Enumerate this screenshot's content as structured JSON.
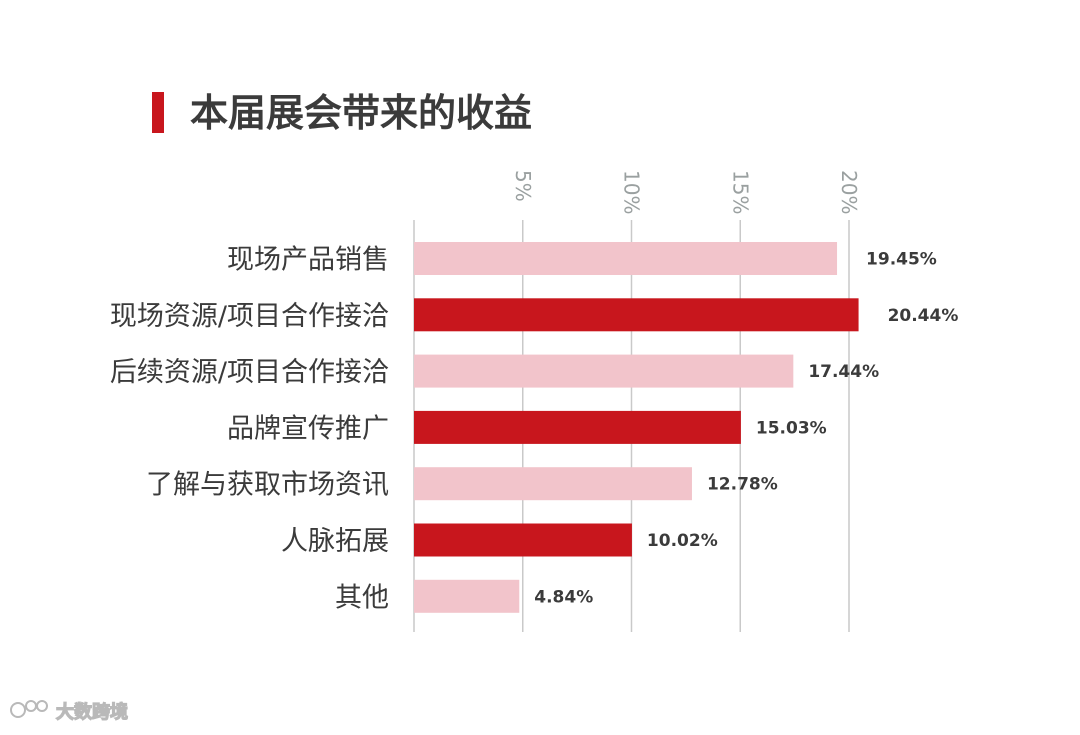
{
  "title": "本届展会带来的收益",
  "watermark": {
    "text": "大数跨境"
  },
  "colors": {
    "accent": "#c8161d",
    "light": "#f2c4cb",
    "grid": "#c9c9c9",
    "text": "#3b3b3b",
    "tick": "#9aa0a0"
  },
  "chart_data": {
    "type": "bar",
    "orientation": "horizontal",
    "categories": [
      "现场产品销售",
      "现场资源/项目合作接洽",
      "后续资源/项目合作接洽",
      "品牌宣传推广",
      "了解与获取市场资讯",
      "人脉拓展",
      "其他"
    ],
    "values": [
      19.45,
      20.44,
      17.44,
      15.03,
      12.78,
      10.02,
      4.84
    ],
    "value_labels": [
      "19.45%",
      "20.44%",
      "17.44%",
      "15.03%",
      "12.78%",
      "10.02%",
      "4.84%"
    ],
    "bar_colors": [
      "#f2c4cb",
      "#c8161d",
      "#f2c4cb",
      "#c8161d",
      "#f2c4cb",
      "#c8161d",
      "#f2c4cb"
    ],
    "xticks": [
      5,
      10,
      15,
      20
    ],
    "xtick_labels": [
      "5%",
      "10%",
      "15%",
      "20%"
    ],
    "xlim": [
      0,
      20
    ],
    "grid": true
  }
}
